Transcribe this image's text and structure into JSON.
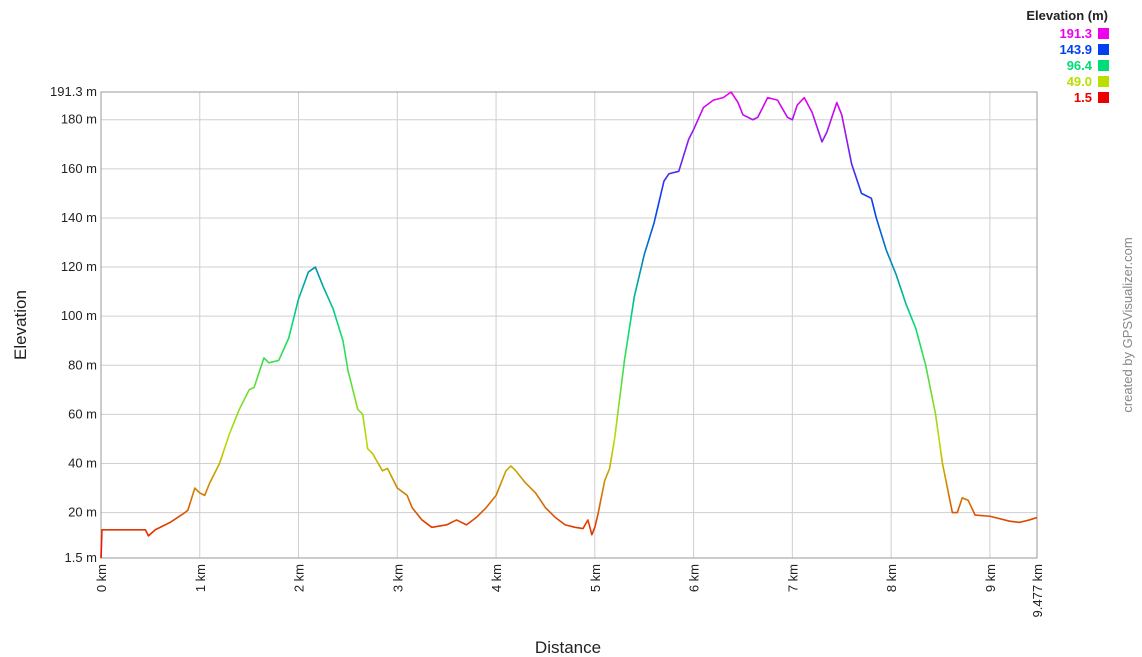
{
  "chart_data": {
    "type": "line",
    "x_label": "Distance",
    "y_label": "Elevation",
    "credit": "created by GPSVisualizer.com",
    "legend": {
      "title": "Elevation (m)",
      "entries": [
        {
          "value": 191.3,
          "color": "#ee00ee"
        },
        {
          "value": 143.9,
          "color": "#0040ee"
        },
        {
          "value": 96.4,
          "color": "#00dd77"
        },
        {
          "value": 49,
          "label": "49.0",
          "color": "#bbdd00"
        },
        {
          "value": 1.5,
          "color": "#ee0000"
        }
      ]
    },
    "grid": true,
    "xlim": [
      0,
      9.477
    ],
    "ylim": [
      1.5,
      191.3
    ],
    "xticks": [
      {
        "value": 0,
        "label": "0 km"
      },
      {
        "value": 1,
        "label": "1 km"
      },
      {
        "value": 2,
        "label": "2 km"
      },
      {
        "value": 3,
        "label": "3 km"
      },
      {
        "value": 4,
        "label": "4 km"
      },
      {
        "value": 5,
        "label": "5 km"
      },
      {
        "value": 6,
        "label": "6 km"
      },
      {
        "value": 7,
        "label": "7 km"
      },
      {
        "value": 8,
        "label": "8 km"
      },
      {
        "value": 9,
        "label": "9 km"
      },
      {
        "value": 9.477,
        "label": "9.477 km"
      }
    ],
    "yticks": [
      {
        "value": 1.5,
        "label": "1.5 m"
      },
      {
        "value": 20,
        "label": "20 m"
      },
      {
        "value": 40,
        "label": "40 m"
      },
      {
        "value": 60,
        "label": "60 m"
      },
      {
        "value": 80,
        "label": "80 m"
      },
      {
        "value": 100,
        "label": "100 m"
      },
      {
        "value": 120,
        "label": "120 m"
      },
      {
        "value": 140,
        "label": "140 m"
      },
      {
        "value": 160,
        "label": "160 m"
      },
      {
        "value": 180,
        "label": "180 m"
      },
      {
        "value": 191.3,
        "label": "191.3 m"
      }
    ],
    "x": [
      0,
      0.01,
      0.1,
      0.3,
      0.45,
      0.48,
      0.55,
      0.7,
      0.85,
      0.88,
      0.95,
      1.0,
      1.05,
      1.1,
      1.2,
      1.3,
      1.4,
      1.5,
      1.55,
      1.6,
      1.65,
      1.7,
      1.8,
      1.9,
      2.0,
      2.1,
      2.17,
      2.25,
      2.35,
      2.45,
      2.5,
      2.6,
      2.65,
      2.7,
      2.75,
      2.85,
      2.9,
      3.0,
      3.1,
      3.15,
      3.25,
      3.35,
      3.5,
      3.6,
      3.7,
      3.8,
      3.9,
      4.0,
      4.1,
      4.15,
      4.2,
      4.3,
      4.4,
      4.5,
      4.6,
      4.7,
      4.8,
      4.88,
      4.93,
      4.97,
      5.0,
      5.03,
      5.1,
      5.15,
      5.2,
      5.3,
      5.4,
      5.5,
      5.6,
      5.7,
      5.75,
      5.85,
      5.95,
      6.0,
      6.1,
      6.2,
      6.3,
      6.38,
      6.45,
      6.5,
      6.6,
      6.65,
      6.75,
      6.85,
      6.95,
      7.0,
      7.05,
      7.12,
      7.2,
      7.3,
      7.35,
      7.45,
      7.5,
      7.6,
      7.7,
      7.8,
      7.85,
      7.95,
      8.05,
      8.15,
      8.25,
      8.35,
      8.45,
      8.52,
      8.58,
      8.62,
      8.67,
      8.72,
      8.78,
      8.85,
      9.0,
      9.2,
      9.3,
      9.4,
      9.477
    ],
    "values": [
      1.5,
      13,
      13,
      13,
      13,
      10.5,
      13,
      16,
      20,
      21,
      30,
      28,
      27,
      32,
      40,
      52,
      62,
      70,
      71,
      77,
      83,
      81,
      82,
      91,
      107,
      118,
      120,
      112,
      103,
      90,
      78,
      62,
      60,
      46,
      44,
      37,
      38,
      30,
      27,
      22,
      17,
      14,
      15,
      17,
      15,
      18,
      22,
      27,
      37,
      39,
      37,
      32,
      28,
      22,
      18,
      15,
      14,
      13.5,
      17,
      11,
      14,
      19,
      33,
      38,
      50,
      82,
      108,
      125,
      138,
      155,
      158,
      159,
      172,
      176,
      185,
      188,
      189,
      191.3,
      187,
      182,
      180,
      181,
      189,
      188,
      181,
      180,
      186,
      189,
      183,
      171,
      175,
      187,
      182,
      162,
      150,
      148,
      140,
      127,
      117,
      105,
      95,
      80,
      60,
      40,
      28,
      20,
      20,
      26,
      25,
      19,
      18.5,
      16.5,
      16,
      17,
      18
    ]
  }
}
